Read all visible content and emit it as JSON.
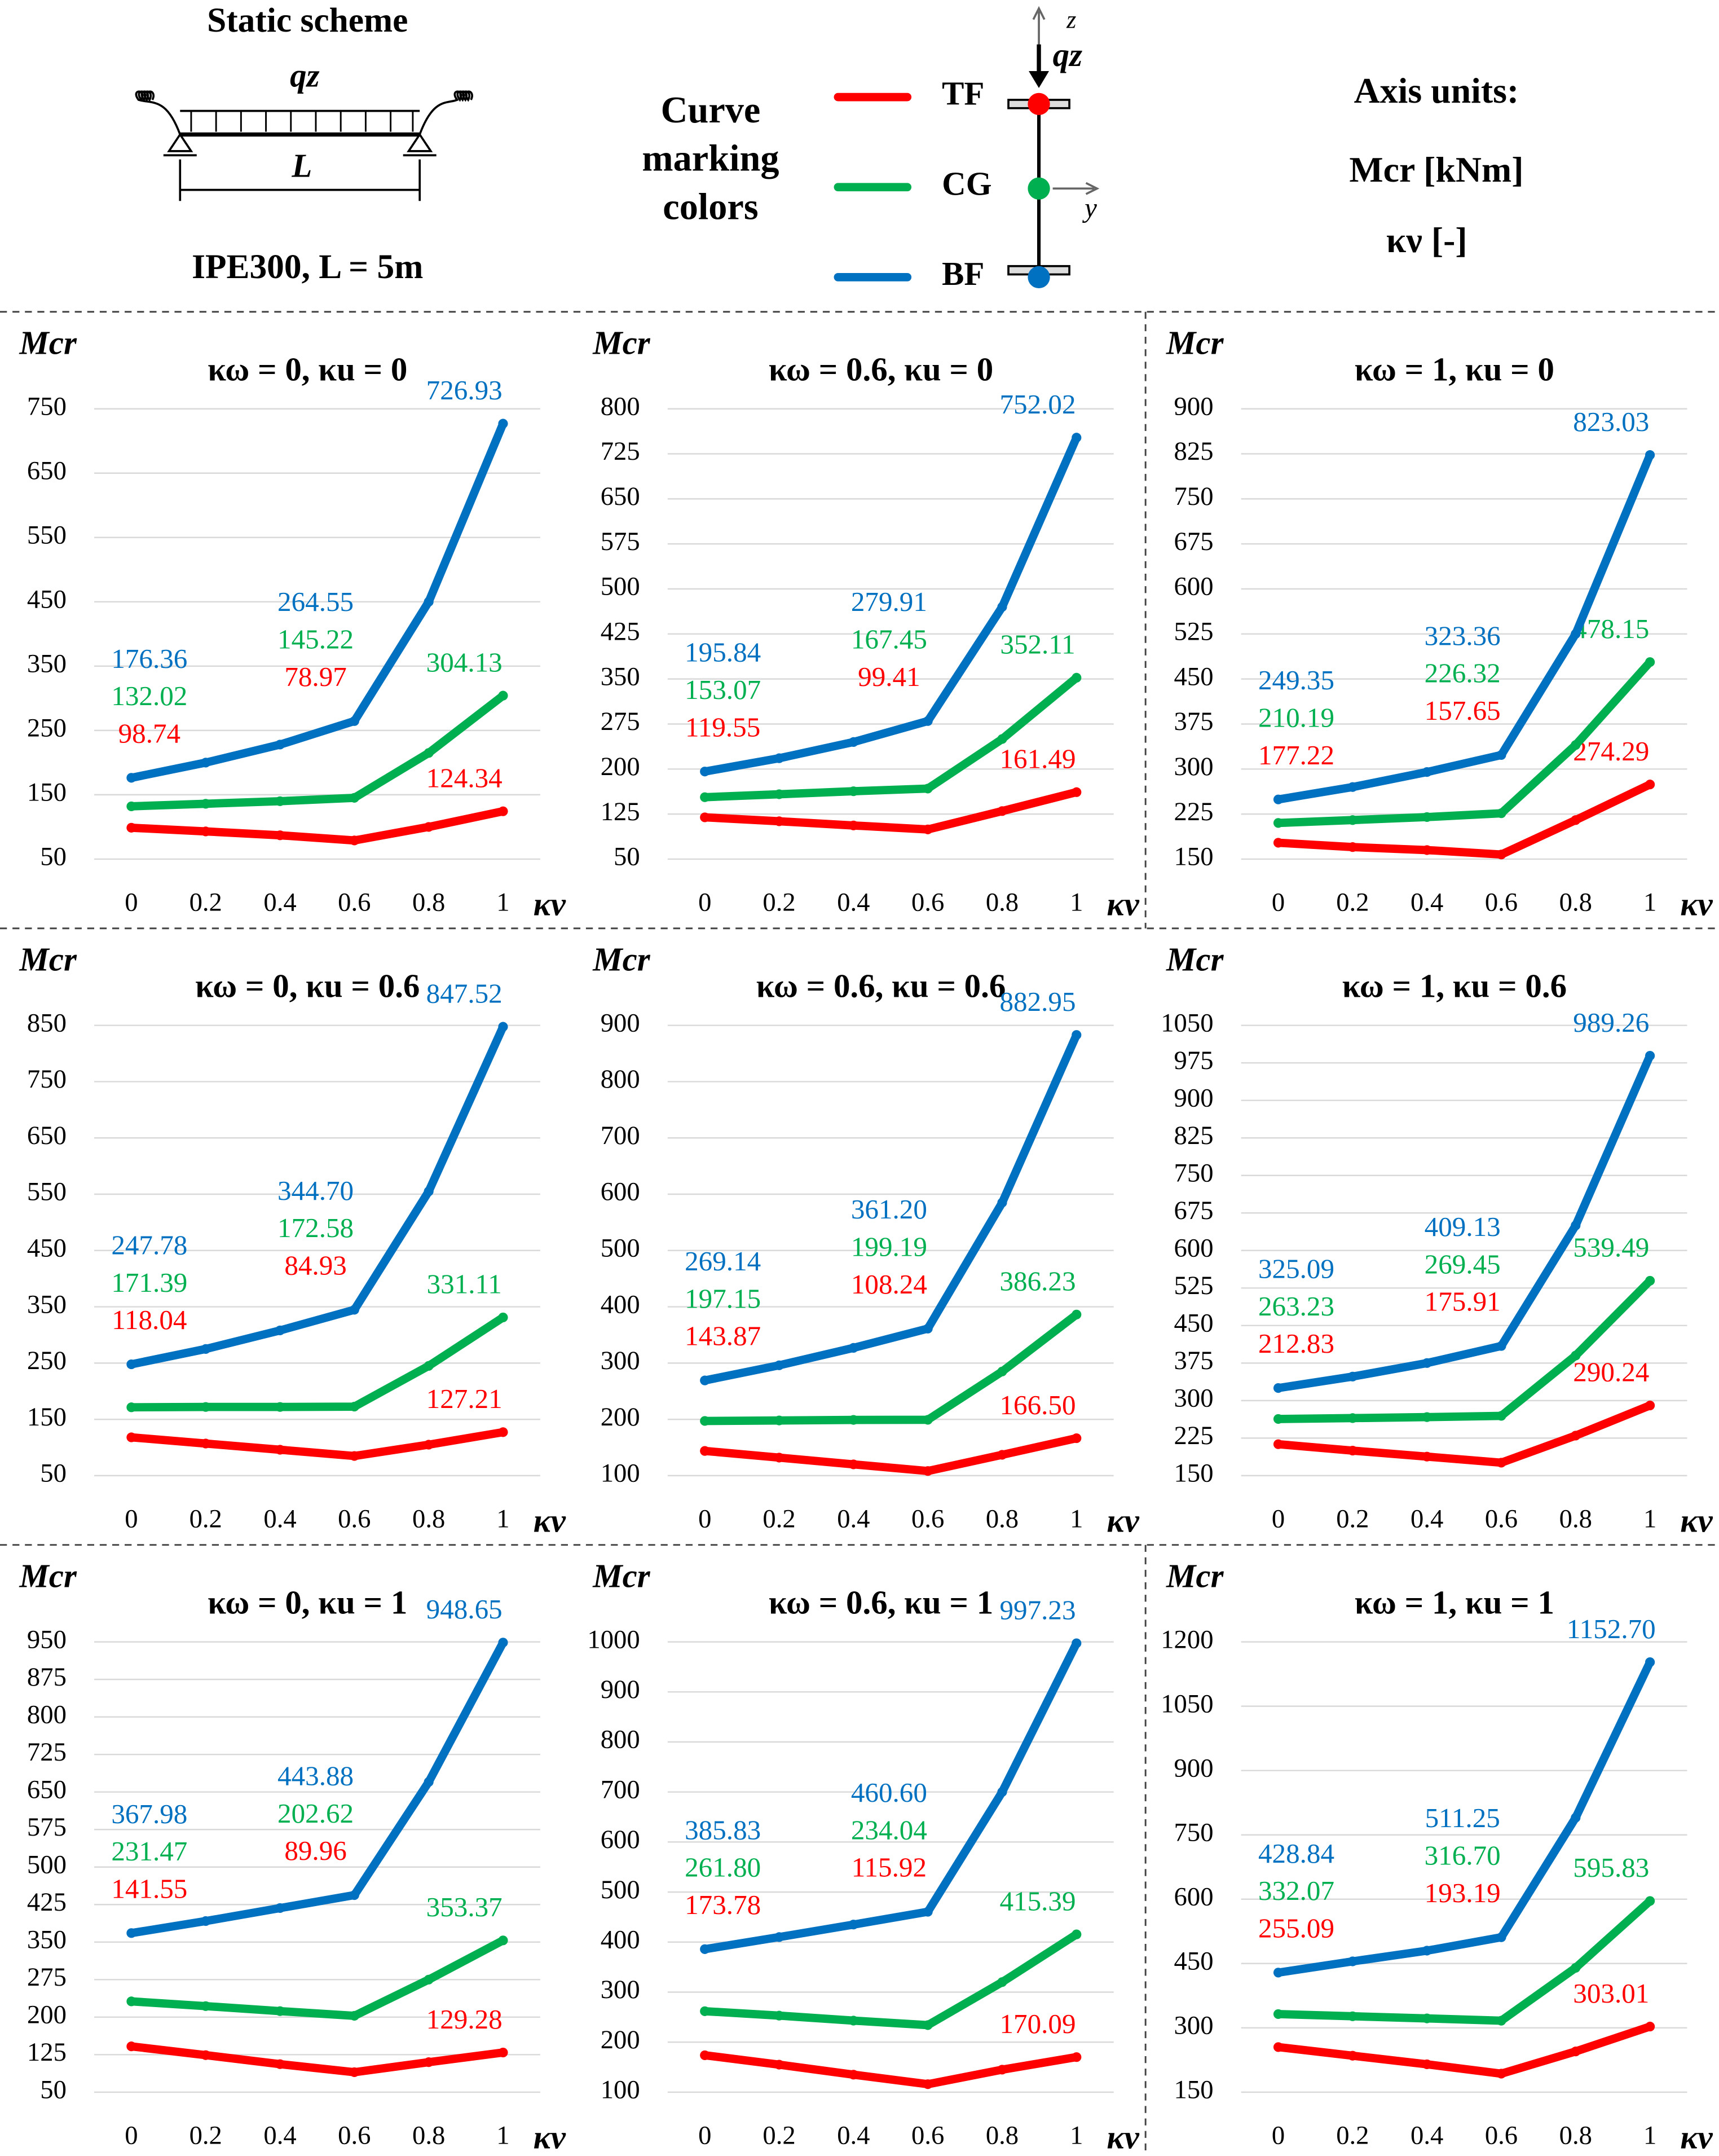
{
  "header": {
    "static_scheme_title": "Static scheme",
    "load_label": "qz",
    "span_label": "L",
    "section_label": "IPE300, L = 5m",
    "legend_title": [
      "Curve",
      "marking",
      "colors"
    ],
    "section_z_axis": "z",
    "section_load": "qz",
    "section_y_axis": "y",
    "axis_units_title": "Axis units:",
    "y_units": "Mcr  [kNm]",
    "x_units": "κν    [-]"
  },
  "chart_data": [
    {
      "type": "line",
      "title": "κω = 0, κu = 0",
      "y_label": "Mcr",
      "x_label": "κν",
      "categories": [
        "0",
        "0.2",
        "0.4",
        "0.6",
        "0.8",
        "1"
      ],
      "ylim": [
        50,
        750
      ],
      "yticks": [
        50,
        150,
        250,
        350,
        450,
        550,
        650,
        750
      ],
      "grid": true,
      "series": [
        {
          "name": "TF",
          "color": "#ff0000",
          "values": [
            98.74,
            93,
            87,
            78.97,
            100,
            124.34
          ],
          "value_labels": [
            "98.74",
            null,
            null,
            "78.97",
            null,
            "124.34"
          ]
        },
        {
          "name": "CG",
          "color": "#00b050",
          "values": [
            132.02,
            136,
            140,
            145.22,
            215,
            304.13
          ],
          "value_labels": [
            "132.02",
            null,
            null,
            "145.22",
            null,
            "304.13"
          ]
        },
        {
          "name": "BF",
          "color": "#0070c0",
          "values": [
            176.36,
            200,
            228,
            264.55,
            450,
            726.93
          ],
          "value_labels": [
            "176.36",
            null,
            null,
            "264.55",
            null,
            "726.93"
          ]
        }
      ]
    },
    {
      "type": "line",
      "title": "κω = 0.6, κu = 0",
      "y_label": "Mcr",
      "x_label": "κν",
      "categories": [
        "0",
        "0.2",
        "0.4",
        "0.6",
        "0.8",
        "1"
      ],
      "ylim": [
        50,
        800
      ],
      "yticks": [
        50,
        125,
        200,
        275,
        350,
        425,
        500,
        575,
        650,
        725,
        800
      ],
      "grid": true,
      "series": [
        {
          "name": "TF",
          "color": "#ff0000",
          "values": [
            119.55,
            113,
            106,
            99.41,
            130,
            161.49
          ],
          "value_labels": [
            "119.55",
            null,
            null,
            "99.41",
            null,
            "161.49"
          ]
        },
        {
          "name": "CG",
          "color": "#00b050",
          "values": [
            153.07,
            158,
            163,
            167.45,
            250,
            352.11
          ],
          "value_labels": [
            "153.07",
            null,
            null,
            "167.45",
            null,
            "352.11"
          ]
        },
        {
          "name": "BF",
          "color": "#0070c0",
          "values": [
            195.84,
            218,
            245,
            279.91,
            470,
            752.02
          ],
          "value_labels": [
            "195.84",
            null,
            null,
            "279.91",
            null,
            "752.02"
          ]
        }
      ]
    },
    {
      "type": "line",
      "title": "κω = 1, κu = 0",
      "y_label": "Mcr",
      "x_label": "κν",
      "categories": [
        "0",
        "0.2",
        "0.4",
        "0.6",
        "0.8",
        "1"
      ],
      "ylim": [
        150,
        900
      ],
      "yticks": [
        150,
        225,
        300,
        375,
        450,
        525,
        600,
        675,
        750,
        825,
        900
      ],
      "grid": true,
      "series": [
        {
          "name": "TF",
          "color": "#ff0000",
          "values": [
            177.22,
            170,
            165,
            157.65,
            215,
            274.29
          ],
          "value_labels": [
            "177.22",
            null,
            null,
            "157.65",
            null,
            "274.29"
          ]
        },
        {
          "name": "CG",
          "color": "#00b050",
          "values": [
            210.19,
            215,
            220,
            226.32,
            340,
            478.15
          ],
          "value_labels": [
            "210.19",
            null,
            null,
            "226.32",
            null,
            "478.15"
          ]
        },
        {
          "name": "BF",
          "color": "#0070c0",
          "values": [
            249.35,
            270,
            295,
            323.36,
            525,
            823.03
          ],
          "value_labels": [
            "249.35",
            null,
            null,
            "323.36",
            null,
            "823.03"
          ]
        }
      ]
    },
    {
      "type": "line",
      "title": "κω = 0, κu = 0.6",
      "y_label": "Mcr",
      "x_label": "κν",
      "categories": [
        "0",
        "0.2",
        "0.4",
        "0.6",
        "0.8",
        "1"
      ],
      "ylim": [
        50,
        850
      ],
      "yticks": [
        50,
        150,
        250,
        350,
        450,
        550,
        650,
        750,
        850
      ],
      "grid": true,
      "series": [
        {
          "name": "TF",
          "color": "#ff0000",
          "values": [
            118.04,
            107,
            96,
            84.93,
            105,
            127.21
          ],
          "value_labels": [
            "118.04",
            null,
            null,
            "84.93",
            null,
            "127.21"
          ]
        },
        {
          "name": "CG",
          "color": "#00b050",
          "values": [
            171.39,
            172,
            172,
            172.58,
            245,
            331.11
          ],
          "value_labels": [
            "171.39",
            null,
            null,
            "172.58",
            null,
            "331.11"
          ]
        },
        {
          "name": "BF",
          "color": "#0070c0",
          "values": [
            247.78,
            275,
            308,
            344.7,
            555,
            847.52
          ],
          "value_labels": [
            "247.78",
            null,
            null,
            "344.70",
            null,
            "847.52"
          ]
        }
      ]
    },
    {
      "type": "line",
      "title": "κω = 0.6, κu = 0.6",
      "y_label": "Mcr",
      "x_label": "κν",
      "categories": [
        "0",
        "0.2",
        "0.4",
        "0.6",
        "0.8",
        "1"
      ],
      "ylim": [
        100,
        900
      ],
      "yticks": [
        100,
        200,
        300,
        400,
        500,
        600,
        700,
        800,
        900
      ],
      "grid": true,
      "series": [
        {
          "name": "TF",
          "color": "#ff0000",
          "values": [
            143.87,
            132,
            120,
            108.24,
            137,
            166.5
          ],
          "value_labels": [
            "143.87",
            null,
            null,
            "108.24",
            null,
            "166.50"
          ]
        },
        {
          "name": "CG",
          "color": "#00b050",
          "values": [
            197.15,
            198,
            199,
            199.19,
            285,
            386.23
          ],
          "value_labels": [
            "197.15",
            null,
            null,
            "199.19",
            null,
            "386.23"
          ]
        },
        {
          "name": "BF",
          "color": "#0070c0",
          "values": [
            269.14,
            296,
            327,
            361.2,
            585,
            882.95
          ],
          "value_labels": [
            "269.14",
            null,
            null,
            "361.20",
            null,
            "882.95"
          ]
        }
      ]
    },
    {
      "type": "line",
      "title": "κω = 1, κu = 0.6",
      "y_label": "Mcr",
      "x_label": "κν",
      "categories": [
        "0",
        "0.2",
        "0.4",
        "0.6",
        "0.8",
        "1"
      ],
      "ylim": [
        150,
        1050
      ],
      "yticks": [
        150,
        225,
        300,
        375,
        450,
        525,
        600,
        675,
        750,
        825,
        900,
        975,
        1050
      ],
      "grid": true,
      "series": [
        {
          "name": "TF",
          "color": "#ff0000",
          "values": [
            212.83,
            200,
            188,
            175.91,
            230,
            290.24
          ],
          "value_labels": [
            "212.83",
            null,
            null,
            "175.91",
            null,
            "290.24"
          ]
        },
        {
          "name": "CG",
          "color": "#00b050",
          "values": [
            263.23,
            265,
            267,
            269.45,
            390,
            539.49
          ],
          "value_labels": [
            "263.23",
            null,
            null,
            "269.45",
            null,
            "539.49"
          ]
        },
        {
          "name": "BF",
          "color": "#0070c0",
          "values": [
            325.09,
            348,
            375,
            409.13,
            650,
            989.26
          ],
          "value_labels": [
            "325.09",
            null,
            null,
            "409.13",
            null,
            "989.26"
          ]
        }
      ]
    },
    {
      "type": "line",
      "title": "κω = 0, κu = 1",
      "y_label": "Mcr",
      "x_label": "κν",
      "categories": [
        "0",
        "0.2",
        "0.4",
        "0.6",
        "0.8",
        "1"
      ],
      "ylim": [
        50,
        950
      ],
      "yticks": [
        50,
        125,
        200,
        275,
        350,
        425,
        500,
        575,
        650,
        725,
        800,
        875,
        950
      ],
      "grid": true,
      "series": [
        {
          "name": "TF",
          "color": "#ff0000",
          "values": [
            141.55,
            124,
            106,
            89.96,
            110,
            129.28
          ],
          "value_labels": [
            "141.55",
            null,
            null,
            "89.96",
            null,
            "129.28"
          ]
        },
        {
          "name": "CG",
          "color": "#00b050",
          "values": [
            231.47,
            222,
            212,
            202.62,
            275,
            353.37
          ],
          "value_labels": [
            "231.47",
            null,
            null,
            "202.62",
            null,
            "353.37"
          ]
        },
        {
          "name": "BF",
          "color": "#0070c0",
          "values": [
            367.98,
            392,
            418,
            443.88,
            670,
            948.65
          ],
          "value_labels": [
            "367.98",
            null,
            null,
            "443.88",
            null,
            "948.65"
          ]
        }
      ]
    },
    {
      "type": "line",
      "title": "κω = 0.6, κu = 1",
      "y_label": "Mcr",
      "x_label": "κν",
      "categories": [
        "0",
        "0.2",
        "0.4",
        "0.6",
        "0.8",
        "1"
      ],
      "ylim": [
        100,
        1000
      ],
      "yticks": [
        100,
        200,
        300,
        400,
        500,
        600,
        700,
        800,
        900,
        1000
      ],
      "grid": true,
      "series": [
        {
          "name": "TF",
          "color": "#ff0000",
          "values": [
            173.78,
            155,
            135,
            115.92,
            145,
            170.09
          ],
          "value_labels": [
            "173.78",
            null,
            null,
            "115.92",
            null,
            "170.09"
          ]
        },
        {
          "name": "CG",
          "color": "#00b050",
          "values": [
            261.8,
            253,
            243,
            234.04,
            320,
            415.39
          ],
          "value_labels": [
            "261.80",
            null,
            null,
            "234.04",
            null,
            "415.39"
          ]
        },
        {
          "name": "BF",
          "color": "#0070c0",
          "values": [
            385.83,
            410,
            435,
            460.6,
            700,
            997.23
          ],
          "value_labels": [
            "385.83",
            null,
            null,
            "460.60",
            null,
            "997.23"
          ]
        }
      ]
    },
    {
      "type": "line",
      "title": "κω = 1, κu = 1",
      "y_label": "Mcr",
      "x_label": "κν",
      "categories": [
        "0",
        "0.2",
        "0.4",
        "0.6",
        "0.8",
        "1"
      ],
      "ylim": [
        150,
        1200
      ],
      "yticks": [
        150,
        300,
        450,
        600,
        750,
        900,
        1050,
        1200
      ],
      "grid": true,
      "series": [
        {
          "name": "TF",
          "color": "#ff0000",
          "values": [
            255.09,
            235,
            215,
            193.19,
            245,
            303.01
          ],
          "value_labels": [
            "255.09",
            null,
            null,
            "193.19",
            null,
            "303.01"
          ]
        },
        {
          "name": "CG",
          "color": "#00b050",
          "values": [
            332.07,
            327,
            322,
            316.7,
            440,
            595.83
          ],
          "value_labels": [
            "332.07",
            null,
            null,
            "316.70",
            null,
            "595.83"
          ]
        },
        {
          "name": "BF",
          "color": "#0070c0",
          "values": [
            428.84,
            455,
            480,
            511.25,
            790,
            1152.7
          ],
          "value_labels": [
            "428.84",
            null,
            null,
            "511.25",
            null,
            "1152.70"
          ]
        }
      ]
    }
  ]
}
